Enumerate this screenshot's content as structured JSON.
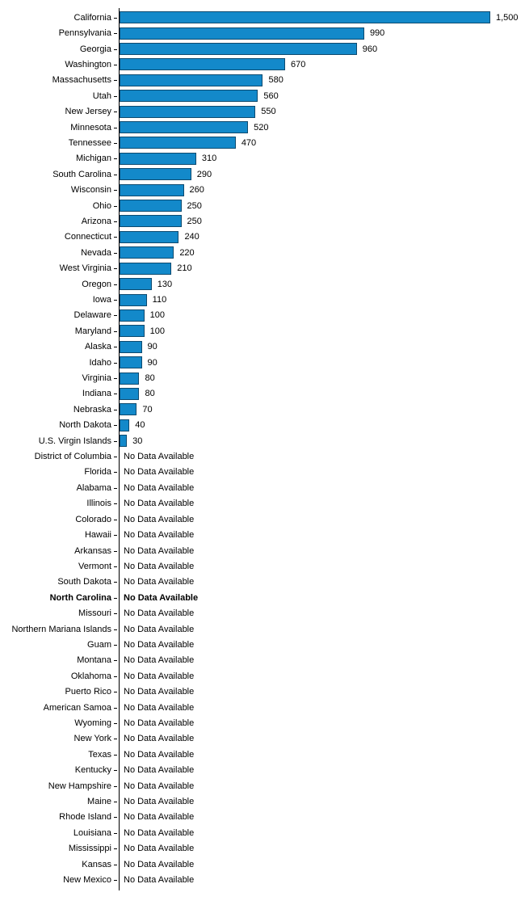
{
  "chart_data": {
    "type": "bar",
    "orientation": "horizontal",
    "title": "",
    "xlabel": "",
    "ylabel": "",
    "xlim": [
      0,
      1500
    ],
    "grid": false,
    "legend": "none",
    "no_data_label": "No Data Available",
    "emphasized_category": "North Carolina",
    "value_format": "thousands-comma",
    "bar_color": "#1389CA",
    "bar_border_color": "#0D4A6F",
    "axis_color": "#000000",
    "text_color": "#000000",
    "background_color": "#FFFFFF",
    "categories": [
      "California",
      "Pennsylvania",
      "Georgia",
      "Washington",
      "Massachusetts",
      "Utah",
      "New Jersey",
      "Minnesota",
      "Tennessee",
      "Michigan",
      "South Carolina",
      "Wisconsin",
      "Ohio",
      "Arizona",
      "Connecticut",
      "Nevada",
      "West Virginia",
      "Oregon",
      "Iowa",
      "Delaware",
      "Maryland",
      "Alaska",
      "Idaho",
      "Virginia",
      "Indiana",
      "Nebraska",
      "North Dakota",
      "U.S. Virgin Islands",
      "District of Columbia",
      "Florida",
      "Alabama",
      "Illinois",
      "Colorado",
      "Hawaii",
      "Arkansas",
      "Vermont",
      "South Dakota",
      "North Carolina",
      "Missouri",
      "Northern Mariana Islands",
      "Guam",
      "Montana",
      "Oklahoma",
      "Puerto Rico",
      "American Samoa",
      "Wyoming",
      "New York",
      "Texas",
      "Kentucky",
      "New Hampshire",
      "Maine",
      "Rhode Island",
      "Louisiana",
      "Mississippi",
      "Kansas",
      "New Mexico"
    ],
    "values": [
      1500,
      990,
      960,
      670,
      580,
      560,
      550,
      520,
      470,
      310,
      290,
      260,
      250,
      250,
      240,
      220,
      210,
      130,
      110,
      100,
      100,
      90,
      90,
      80,
      80,
      70,
      40,
      30,
      null,
      null,
      null,
      null,
      null,
      null,
      null,
      null,
      null,
      null,
      null,
      null,
      null,
      null,
      null,
      null,
      null,
      null,
      null,
      null,
      null,
      null,
      null,
      null,
      null,
      null,
      null,
      null
    ]
  }
}
